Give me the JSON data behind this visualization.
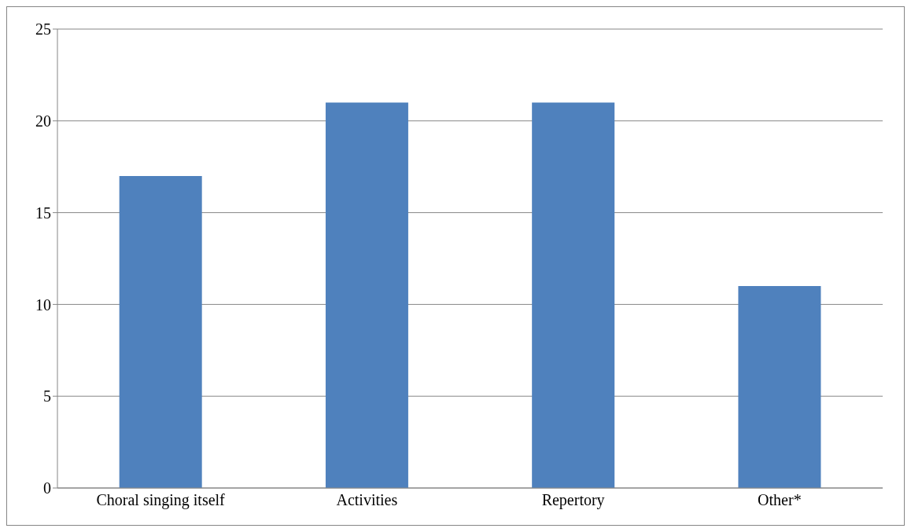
{
  "chart_data": {
    "type": "bar",
    "categories": [
      "Choral singing itself",
      "Activities",
      "Repertory",
      "Other*"
    ],
    "values": [
      17,
      21,
      21,
      11
    ],
    "color": "#4f81bd",
    "ylim": [
      0,
      25
    ],
    "yticks": [
      0,
      5,
      10,
      15,
      20,
      25
    ],
    "grid": "y"
  }
}
